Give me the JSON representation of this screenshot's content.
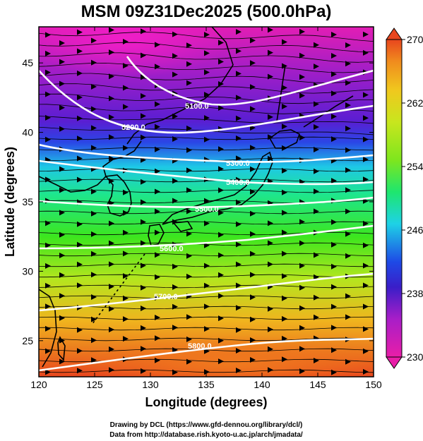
{
  "title": "MSM 09Z31Dec2025 (500.0hPa)",
  "xlabel": "Longitude (degrees)",
  "ylabel": "Latitude  (degrees)",
  "credits": {
    "line1": "Drawing by DCL (https://www.gfd-dennou.org/library/dcl/)",
    "line2": "Data from http://database.rish.kyoto-u.ac.jp/arch/jmadata/"
  },
  "chart_data": {
    "type": "heatmap",
    "field": "temperature (K)",
    "xlim": [
      120,
      150
    ],
    "ylim": [
      22.4,
      47.6
    ],
    "x_ticks": [
      120,
      125,
      130,
      135,
      140,
      145,
      150
    ],
    "y_ticks": [
      25,
      30,
      35,
      40,
      45
    ],
    "colorbar": {
      "range": [
        230,
        270
      ],
      "tick_labels": [
        270,
        262,
        254,
        246,
        238,
        230
      ],
      "colors": [
        "#e81ea8",
        "#a81ec8",
        "#3a1ec8",
        "#1e4ae6",
        "#1ed2e6",
        "#1ee66e",
        "#7ee61e",
        "#c8e61e",
        "#f0c81e",
        "#f08c1e",
        "#e8461e"
      ]
    },
    "height_contours": [
      {
        "label": "5100.0",
        "value": 5100
      },
      {
        "label": "5200.0",
        "value": 5200
      },
      {
        "label": "5300.0",
        "value": 5300
      },
      {
        "label": "5400.0",
        "value": 5400
      },
      {
        "label": "5500.0",
        "value": 5500
      },
      {
        "label": "5600.0",
        "value": 5600
      },
      {
        "label": "5700.0",
        "value": 5700
      },
      {
        "label": "5800.0",
        "value": 5800
      }
    ],
    "features": [
      "temperature shading",
      "geopotential height contours",
      "wind streamlines",
      "coastlines"
    ]
  }
}
